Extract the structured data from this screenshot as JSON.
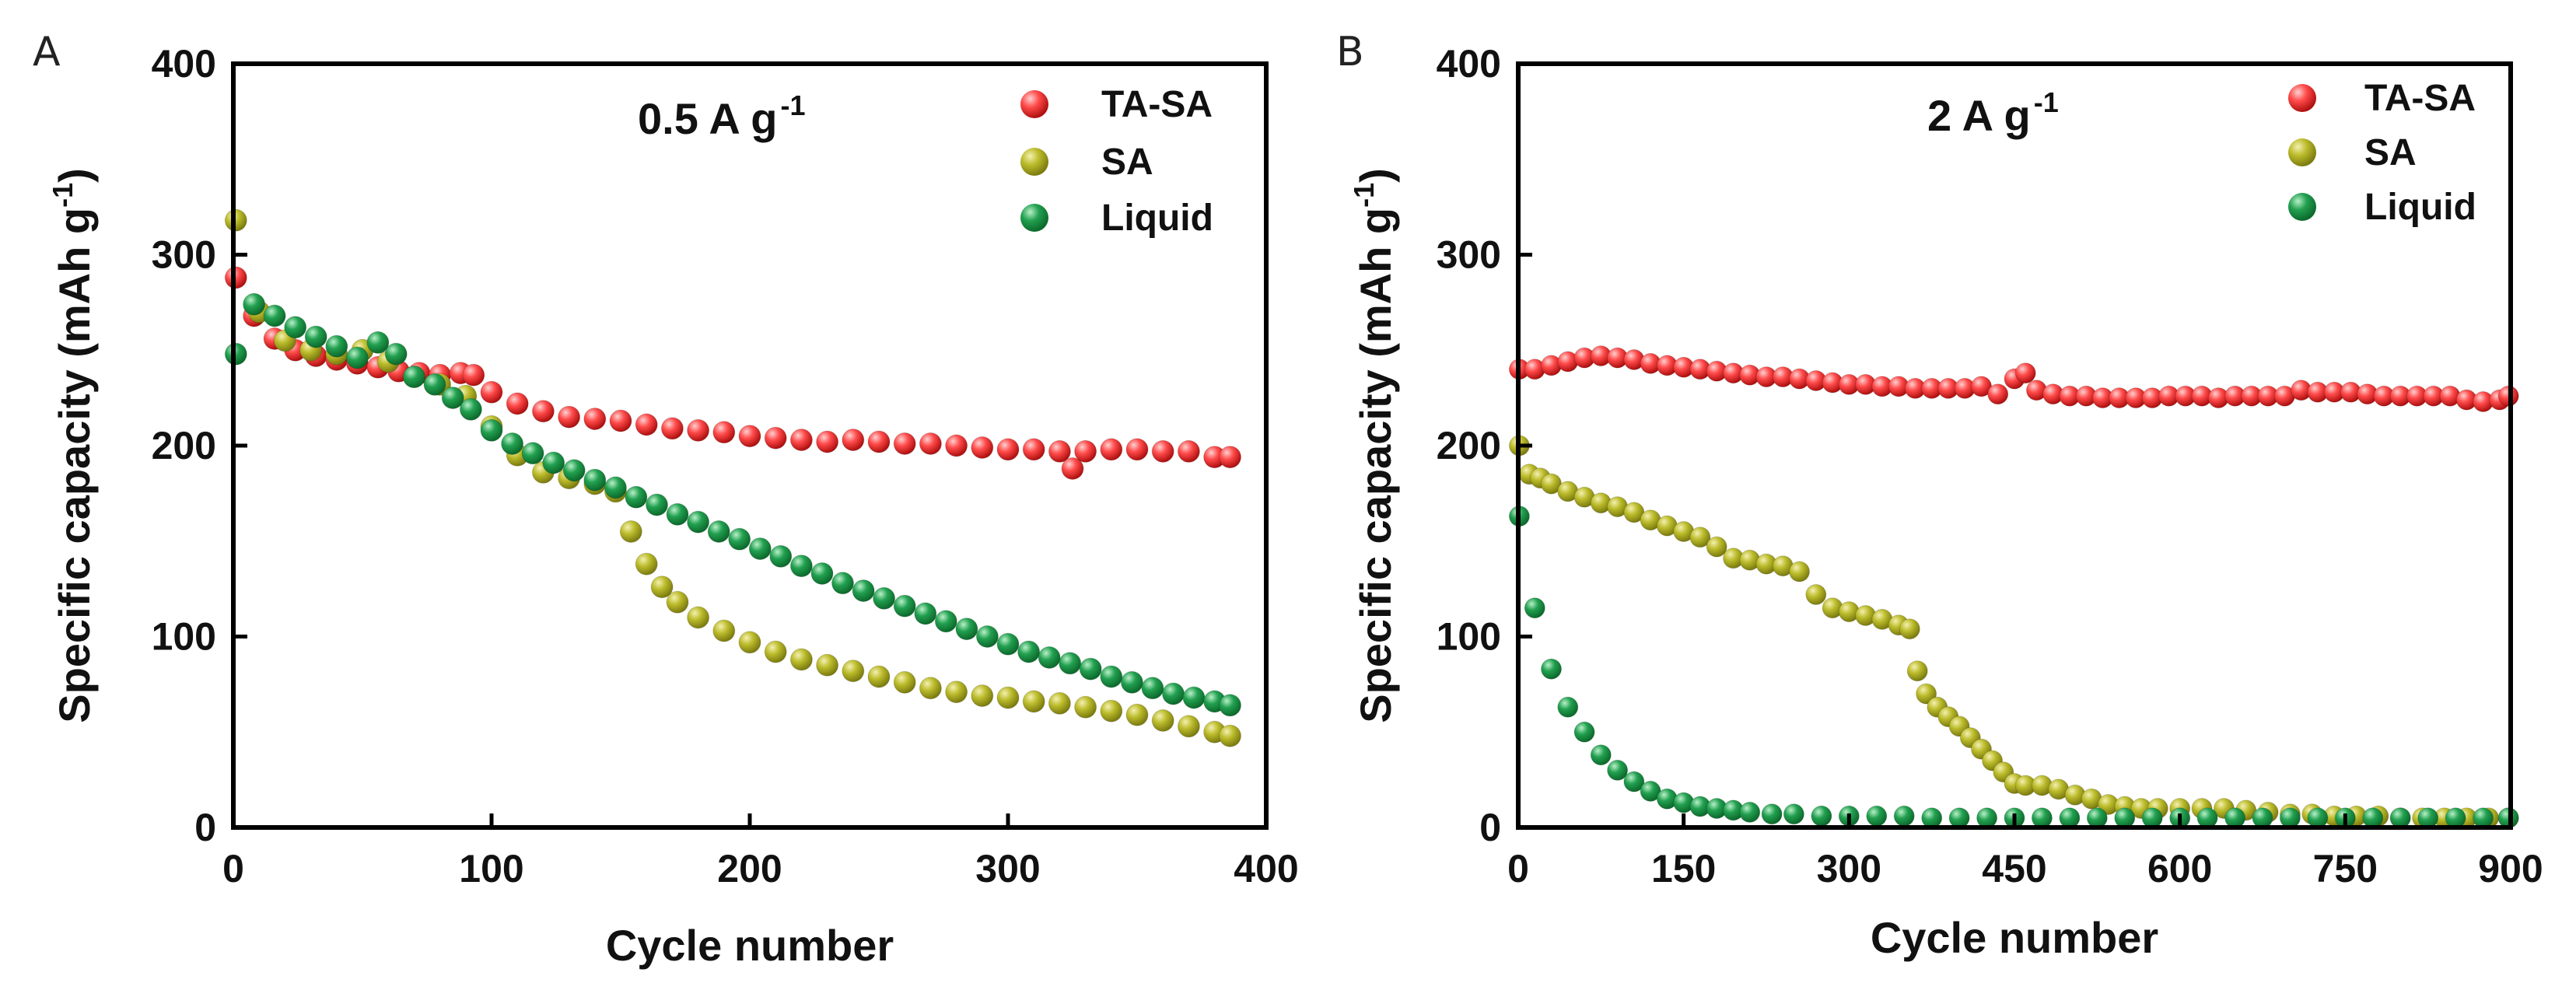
{
  "chart_data": [
    {
      "panel_label": "A",
      "type": "scatter",
      "annotation": {
        "main": "0.5 A g",
        "sup": "-1"
      },
      "xlabel": "Cycle number",
      "ylabel": {
        "main": "Specific capacity (mAh g",
        "sup": "-1",
        "end": ")"
      },
      "xlim": [
        0,
        400
      ],
      "ylim": [
        0,
        400
      ],
      "xticks": [
        "0",
        "100",
        "200",
        "300",
        "400"
      ],
      "yticks": [
        "0",
        "100",
        "200",
        "300",
        "400"
      ],
      "legend_position": "top-right",
      "series": [
        {
          "name": "TA-SA",
          "color": "#e8282d",
          "x": [
            1,
            8,
            16,
            24,
            32,
            40,
            48,
            56,
            64,
            72,
            80,
            88,
            93,
            100,
            110,
            120,
            130,
            140,
            150,
            160,
            170,
            180,
            190,
            200,
            210,
            220,
            230,
            240,
            250,
            260,
            270,
            280,
            290,
            300,
            310,
            320,
            325,
            330,
            340,
            350,
            360,
            370,
            380,
            386
          ],
          "y": [
            288,
            268,
            256,
            250,
            247,
            245,
            243,
            241,
            239,
            238,
            237,
            238,
            237,
            228,
            222,
            218,
            215,
            214,
            213,
            211,
            209,
            208,
            207,
            205,
            204,
            203,
            202,
            203,
            202,
            201,
            201,
            200,
            199,
            198,
            198,
            197,
            188,
            197,
            198,
            198,
            197,
            197,
            194,
            194
          ]
        },
        {
          "name": "SA",
          "color": "#aaaa22",
          "x": [
            1,
            10,
            20,
            30,
            40,
            50,
            60,
            70,
            80,
            90,
            100,
            110,
            120,
            130,
            140,
            148,
            154,
            160,
            166,
            172,
            180,
            190,
            200,
            210,
            220,
            230,
            240,
            250,
            260,
            270,
            280,
            290,
            300,
            310,
            320,
            330,
            340,
            350,
            360,
            370,
            380,
            386
          ],
          "y": [
            318,
            270,
            255,
            250,
            248,
            250,
            244,
            236,
            232,
            226,
            210,
            195,
            186,
            183,
            180,
            176,
            155,
            138,
            126,
            118,
            110,
            103,
            97,
            92,
            88,
            85,
            82,
            79,
            76,
            73,
            71,
            69,
            68,
            66,
            65,
            63,
            61,
            59,
            56,
            53,
            50,
            48
          ]
        },
        {
          "name": "Liquid",
          "color": "#1f9a48",
          "x": [
            1,
            8,
            16,
            24,
            32,
            40,
            48,
            56,
            63,
            70,
            78,
            85,
            92,
            100,
            108,
            116,
            124,
            132,
            140,
            148,
            156,
            164,
            172,
            180,
            188,
            196,
            204,
            212,
            220,
            228,
            236,
            244,
            252,
            260,
            268,
            276,
            284,
            292,
            300,
            308,
            316,
            324,
            332,
            340,
            348,
            356,
            364,
            372,
            380,
            386
          ],
          "y": [
            248,
            274,
            268,
            262,
            257,
            252,
            246,
            254,
            248,
            236,
            232,
            225,
            219,
            208,
            201,
            196,
            191,
            187,
            182,
            178,
            173,
            169,
            164,
            160,
            155,
            151,
            146,
            142,
            137,
            133,
            128,
            124,
            120,
            116,
            112,
            108,
            104,
            100,
            96,
            92,
            89,
            86,
            83,
            79,
            76,
            73,
            70,
            68,
            66,
            64
          ]
        }
      ]
    },
    {
      "panel_label": "B",
      "type": "scatter",
      "annotation": {
        "main": "2 A g",
        "sup": "-1"
      },
      "xlabel": "Cycle number",
      "ylabel": {
        "main": "Specific capacity (mAh g",
        "sup": "-1",
        "end": ")"
      },
      "xlim": [
        0,
        900
      ],
      "ylim": [
        0,
        400
      ],
      "xticks": [
        "0",
        "150",
        "300",
        "450",
        "600",
        "750",
        "900"
      ],
      "yticks": [
        "0",
        "100",
        "200",
        "300",
        "400"
      ],
      "legend_position": "top-right",
      "series": [
        {
          "name": "TA-SA",
          "color": "#e8282d",
          "x": [
            1,
            15,
            30,
            45,
            60,
            75,
            90,
            105,
            120,
            135,
            150,
            165,
            180,
            195,
            210,
            225,
            240,
            255,
            270,
            285,
            300,
            315,
            330,
            345,
            360,
            375,
            390,
            405,
            420,
            435,
            450,
            460,
            470,
            485,
            500,
            515,
            530,
            545,
            560,
            575,
            590,
            605,
            620,
            635,
            650,
            665,
            680,
            695,
            710,
            725,
            740,
            755,
            770,
            785,
            800,
            815,
            830,
            845,
            860,
            875,
            890,
            898
          ],
          "y": [
            240,
            240,
            242,
            244,
            246,
            247,
            246,
            245,
            243,
            242,
            241,
            240,
            239,
            238,
            237,
            236,
            236,
            235,
            234,
            233,
            232,
            232,
            231,
            231,
            230,
            230,
            230,
            230,
            231,
            227,
            235,
            238,
            229,
            227,
            226,
            226,
            225,
            225,
            225,
            225,
            226,
            226,
            226,
            225,
            226,
            226,
            226,
            226,
            229,
            228,
            228,
            228,
            227,
            226,
            226,
            226,
            226,
            226,
            224,
            223,
            224,
            226
          ]
        },
        {
          "name": "SA",
          "color": "#aaaa22",
          "x": [
            1,
            10,
            20,
            30,
            45,
            60,
            75,
            90,
            105,
            120,
            135,
            150,
            165,
            180,
            195,
            210,
            225,
            240,
            255,
            270,
            285,
            300,
            315,
            330,
            345,
            355,
            362,
            370,
            380,
            390,
            400,
            410,
            420,
            430,
            440,
            450,
            460,
            475,
            490,
            505,
            520,
            535,
            550,
            565,
            580,
            600,
            620,
            640,
            660,
            680,
            700,
            720,
            740,
            760,
            780,
            800,
            820,
            840,
            860,
            880,
            898
          ],
          "y": [
            200,
            185,
            183,
            180,
            176,
            173,
            170,
            168,
            165,
            161,
            158,
            155,
            152,
            147,
            141,
            140,
            138,
            137,
            134,
            122,
            115,
            113,
            111,
            109,
            106,
            104,
            82,
            70,
            63,
            58,
            53,
            47,
            41,
            35,
            29,
            23,
            22,
            22,
            20,
            17,
            15,
            12,
            11,
            10,
            10,
            10,
            10,
            10,
            9,
            8,
            7,
            7,
            6,
            6,
            6,
            5,
            5,
            5,
            5,
            5,
            5
          ]
        },
        {
          "name": "Liquid",
          "color": "#1f9a48",
          "x": [
            1,
            15,
            30,
            45,
            60,
            75,
            90,
            105,
            120,
            135,
            150,
            165,
            180,
            195,
            210,
            230,
            250,
            275,
            300,
            325,
            350,
            375,
            400,
            425,
            450,
            475,
            500,
            525,
            550,
            575,
            600,
            625,
            650,
            675,
            700,
            725,
            750,
            775,
            800,
            825,
            850,
            875,
            898
          ],
          "y": [
            163,
            115,
            83,
            63,
            50,
            38,
            30,
            24,
            19,
            15,
            13,
            11,
            10,
            9,
            8,
            7,
            7,
            6,
            6,
            6,
            6,
            5,
            5,
            5,
            5,
            5,
            5,
            5,
            5,
            5,
            5,
            5,
            5,
            5,
            5,
            5,
            5,
            5,
            5,
            5,
            5,
            5,
            5
          ]
        }
      ]
    }
  ]
}
